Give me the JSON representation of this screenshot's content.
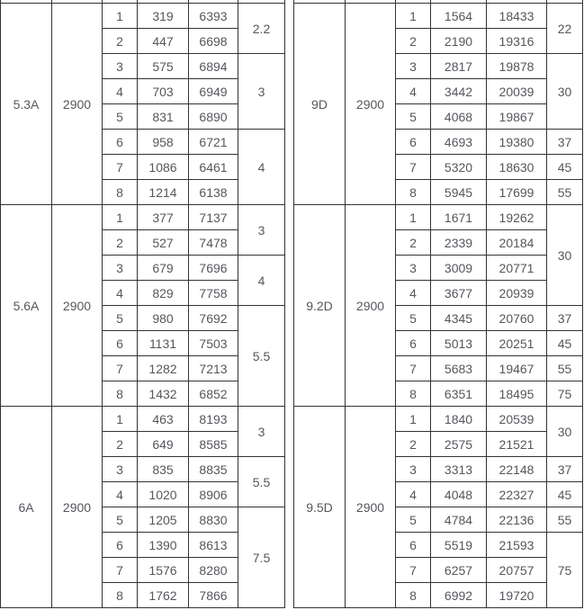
{
  "colors": {
    "text": "#54575c",
    "border": "#333333",
    "background": "#ffffff"
  },
  "tables": [
    {
      "name": "left-spec-table",
      "blocks": [
        {
          "model": "5.3A",
          "rpm": "2900",
          "rows": [
            {
              "no": "1",
              "a": "319",
              "b": "6393"
            },
            {
              "no": "2",
              "a": "447",
              "b": "6698"
            },
            {
              "no": "3",
              "a": "575",
              "b": "6894"
            },
            {
              "no": "4",
              "a": "703",
              "b": "6949"
            },
            {
              "no": "5",
              "a": "831",
              "b": "6890"
            },
            {
              "no": "6",
              "a": "958",
              "b": "6721"
            },
            {
              "no": "7",
              "a": "1086",
              "b": "6461"
            },
            {
              "no": "8",
              "a": "1214",
              "b": "6138"
            }
          ],
          "power_groups": [
            {
              "value": "2.2",
              "span": 2
            },
            {
              "value": "3",
              "span": 3
            },
            {
              "value": "4",
              "span": 3
            }
          ]
        },
        {
          "model": "5.6A",
          "rpm": "2900",
          "rows": [
            {
              "no": "1",
              "a": "377",
              "b": "7137"
            },
            {
              "no": "2",
              "a": "527",
              "b": "7478"
            },
            {
              "no": "3",
              "a": "679",
              "b": "7696"
            },
            {
              "no": "4",
              "a": "829",
              "b": "7758"
            },
            {
              "no": "5",
              "a": "980",
              "b": "7692"
            },
            {
              "no": "6",
              "a": "1131",
              "b": "7503"
            },
            {
              "no": "7",
              "a": "1282",
              "b": "7213"
            },
            {
              "no": "8",
              "a": "1432",
              "b": "6852"
            }
          ],
          "power_groups": [
            {
              "value": "3",
              "span": 2
            },
            {
              "value": "4",
              "span": 2
            },
            {
              "value": "5.5",
              "span": 4
            }
          ]
        },
        {
          "model": "6A",
          "rpm": "2900",
          "rows": [
            {
              "no": "1",
              "a": "463",
              "b": "8193"
            },
            {
              "no": "2",
              "a": "649",
              "b": "8585"
            },
            {
              "no": "3",
              "a": "835",
              "b": "8835"
            },
            {
              "no": "4",
              "a": "1020",
              "b": "8906"
            },
            {
              "no": "5",
              "a": "1205",
              "b": "8830"
            },
            {
              "no": "6",
              "a": "1390",
              "b": "8613"
            },
            {
              "no": "7",
              "a": "1576",
              "b": "8280"
            },
            {
              "no": "8",
              "a": "1762",
              "b": "7866"
            }
          ],
          "power_groups": [
            {
              "value": "3",
              "span": 2
            },
            {
              "value": "5.5",
              "span": 2
            },
            {
              "value": "7.5",
              "span": 4
            }
          ]
        }
      ]
    },
    {
      "name": "right-spec-table",
      "blocks": [
        {
          "model": "9D",
          "rpm": "2900",
          "rows": [
            {
              "no": "1",
              "a": "1564",
              "b": "18433"
            },
            {
              "no": "2",
              "a": "2190",
              "b": "19316"
            },
            {
              "no": "3",
              "a": "2817",
              "b": "19878"
            },
            {
              "no": "4",
              "a": "3442",
              "b": "20039"
            },
            {
              "no": "5",
              "a": "4068",
              "b": "19867"
            },
            {
              "no": "6",
              "a": "4693",
              "b": "19380"
            },
            {
              "no": "7",
              "a": "5320",
              "b": "18630"
            },
            {
              "no": "8",
              "a": "5945",
              "b": "17699"
            }
          ],
          "power_groups": [
            {
              "value": "22",
              "span": 2
            },
            {
              "value": "30",
              "span": 3
            },
            {
              "value": "37",
              "span": 1
            },
            {
              "value": "45",
              "span": 1
            },
            {
              "value": "55",
              "span": 1
            }
          ]
        },
        {
          "model": "9.2D",
          "rpm": "2900",
          "rows": [
            {
              "no": "1",
              "a": "1671",
              "b": "19262"
            },
            {
              "no": "2",
              "a": "2339",
              "b": "20184"
            },
            {
              "no": "3",
              "a": "3009",
              "b": "20771"
            },
            {
              "no": "4",
              "a": "3677",
              "b": "20939"
            },
            {
              "no": "5",
              "a": "4345",
              "b": "20760"
            },
            {
              "no": "6",
              "a": "5013",
              "b": "20251"
            },
            {
              "no": "7",
              "a": "5683",
              "b": "19467"
            },
            {
              "no": "8",
              "a": "6351",
              "b": "18495"
            }
          ],
          "power_groups": [
            {
              "value": "30",
              "span": 4
            },
            {
              "value": "37",
              "span": 1
            },
            {
              "value": "45",
              "span": 1
            },
            {
              "value": "55",
              "span": 1
            },
            {
              "value": "75",
              "span": 1
            }
          ]
        },
        {
          "model": "9.5D",
          "rpm": "2900",
          "rows": [
            {
              "no": "1",
              "a": "1840",
              "b": "20539"
            },
            {
              "no": "2",
              "a": "2575",
              "b": "21521"
            },
            {
              "no": "3",
              "a": "3313",
              "b": "22148"
            },
            {
              "no": "4",
              "a": "4048",
              "b": "22327"
            },
            {
              "no": "5",
              "a": "4784",
              "b": "22136"
            },
            {
              "no": "6",
              "a": "5519",
              "b": "21593"
            },
            {
              "no": "7",
              "a": "6257",
              "b": "20757"
            },
            {
              "no": "8",
              "a": "6992",
              "b": "19720"
            }
          ],
          "power_groups": [
            {
              "value": "30",
              "span": 2
            },
            {
              "value": "37",
              "span": 1
            },
            {
              "value": "45",
              "span": 1
            },
            {
              "value": "55",
              "span": 1
            },
            {
              "value": "75",
              "span": 3
            }
          ]
        }
      ]
    }
  ]
}
